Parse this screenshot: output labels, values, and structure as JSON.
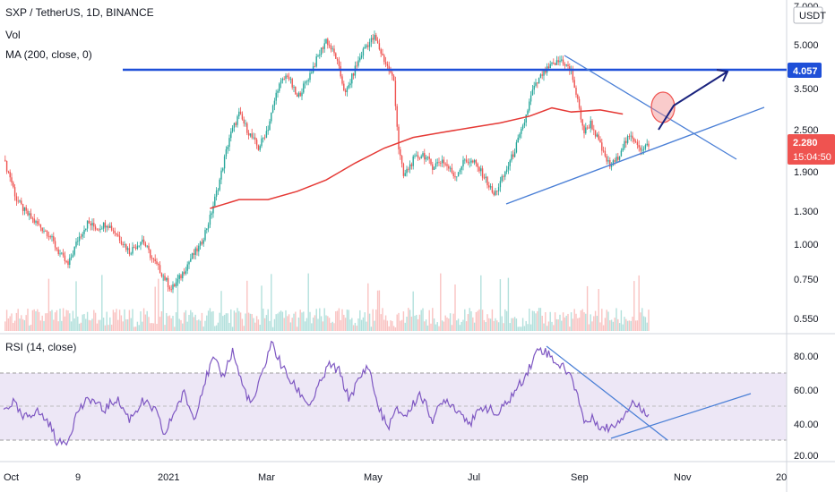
{
  "legend": {
    "symbol": "SXP / TetherUS, 1D, BINANCE",
    "volume": "Vol",
    "ma": "MA (200, close, 0)",
    "rsi": "RSI (14, close)"
  },
  "price_axis": {
    "currency": "USDT",
    "ticks": [
      "5.000",
      "3.500",
      "2.500",
      "1.900",
      "1.300",
      "1.000",
      "0.750",
      "0.550"
    ],
    "top_tick_partial": "7.000"
  },
  "rsi_axis": {
    "ticks": [
      "80.00",
      "60.00",
      "40.00",
      "20.00"
    ]
  },
  "time_axis": {
    "ticks": [
      "Oct",
      "9",
      "2021",
      "Mar",
      "May",
      "Jul",
      "Sep",
      "Nov",
      "20"
    ]
  },
  "price_labels": {
    "resistance": "4.057",
    "last_price": "2.280",
    "countdown": "15:04:50"
  },
  "colors": {
    "up": "#26a69a",
    "down": "#ef5350",
    "ma": "#e53935",
    "resistance_line": "#1e4fd8",
    "trendline": "#4a7fd6",
    "rsi_line": "#7e57c2",
    "rsi_band": "#ede7f6",
    "arrow": "#1a237e",
    "circle": "#f28b8b"
  },
  "chart_data": {
    "type": "candlestick",
    "symbol": "SXP / TetherUS",
    "timeframe": "1D",
    "exchange": "BINANCE",
    "y_scale": "log",
    "price_range": [
      0.5,
      7.0
    ],
    "close_series": [
      [
        0,
        2.0
      ],
      [
        4,
        1.75
      ],
      [
        8,
        1.45
      ],
      [
        14,
        1.3
      ],
      [
        20,
        1.2
      ],
      [
        28,
        1.1
      ],
      [
        34,
        0.95
      ],
      [
        40,
        0.85
      ],
      [
        46,
        1.05
      ],
      [
        52,
        1.2
      ],
      [
        58,
        1.15
      ],
      [
        64,
        1.2
      ],
      [
        70,
        1.1
      ],
      [
        78,
        0.95
      ],
      [
        86,
        1.05
      ],
      [
        92,
        0.9
      ],
      [
        98,
        0.8
      ],
      [
        104,
        0.7
      ],
      [
        110,
        0.78
      ],
      [
        116,
        0.9
      ],
      [
        122,
        1.0
      ],
      [
        128,
        1.25
      ],
      [
        134,
        1.7
      ],
      [
        140,
        2.4
      ],
      [
        146,
        2.9
      ],
      [
        152,
        2.5
      ],
      [
        158,
        2.2
      ],
      [
        164,
        2.6
      ],
      [
        170,
        3.6
      ],
      [
        176,
        4.0
      ],
      [
        182,
        3.3
      ],
      [
        188,
        3.8
      ],
      [
        194,
        4.5
      ],
      [
        200,
        5.3
      ],
      [
        206,
        4.6
      ],
      [
        212,
        3.4
      ],
      [
        218,
        4.2
      ],
      [
        224,
        5.0
      ],
      [
        230,
        5.4
      ],
      [
        236,
        4.5
      ],
      [
        242,
        3.8
      ],
      [
        245,
        2.2
      ],
      [
        248,
        1.75
      ],
      [
        254,
        2.0
      ],
      [
        260,
        2.1
      ],
      [
        266,
        1.9
      ],
      [
        272,
        2.0
      ],
      [
        280,
        1.75
      ],
      [
        286,
        2.0
      ],
      [
        292,
        1.95
      ],
      [
        298,
        1.75
      ],
      [
        304,
        1.5
      ],
      [
        310,
        1.75
      ],
      [
        316,
        2.1
      ],
      [
        322,
        2.6
      ],
      [
        328,
        3.5
      ],
      [
        334,
        4.0
      ],
      [
        340,
        4.3
      ],
      [
        346,
        4.5
      ],
      [
        352,
        4.1
      ],
      [
        356,
        3.2
      ],
      [
        360,
        2.5
      ],
      [
        364,
        2.7
      ],
      [
        368,
        2.4
      ],
      [
        372,
        2.1
      ],
      [
        376,
        1.9
      ],
      [
        380,
        2.0
      ],
      [
        384,
        2.25
      ],
      [
        388,
        2.4
      ],
      [
        392,
        2.35
      ],
      [
        396,
        2.15
      ],
      [
        400,
        2.28
      ]
    ],
    "ma200_series": [
      [
        128,
        1.35
      ],
      [
        146,
        1.45
      ],
      [
        164,
        1.45
      ],
      [
        182,
        1.55
      ],
      [
        200,
        1.7
      ],
      [
        218,
        1.95
      ],
      [
        236,
        2.2
      ],
      [
        254,
        2.4
      ],
      [
        272,
        2.5
      ],
      [
        290,
        2.6
      ],
      [
        308,
        2.7
      ],
      [
        326,
        2.85
      ],
      [
        340,
        3.05
      ],
      [
        352,
        2.95
      ],
      [
        370,
        3.0
      ],
      [
        384,
        2.9
      ]
    ],
    "resistance_level": 4.057,
    "last_price": 2.28,
    "rsi_series": [
      [
        0,
        45
      ],
      [
        6,
        50
      ],
      [
        12,
        40
      ],
      [
        20,
        45
      ],
      [
        28,
        38
      ],
      [
        34,
        25
      ],
      [
        40,
        28
      ],
      [
        46,
        45
      ],
      [
        54,
        52
      ],
      [
        62,
        45
      ],
      [
        70,
        52
      ],
      [
        78,
        40
      ],
      [
        86,
        50
      ],
      [
        94,
        45
      ],
      [
        100,
        30
      ],
      [
        106,
        45
      ],
      [
        112,
        55
      ],
      [
        118,
        40
      ],
      [
        124,
        60
      ],
      [
        130,
        75
      ],
      [
        136,
        65
      ],
      [
        142,
        80
      ],
      [
        148,
        60
      ],
      [
        154,
        48
      ],
      [
        160,
        65
      ],
      [
        166,
        85
      ],
      [
        172,
        72
      ],
      [
        178,
        62
      ],
      [
        184,
        55
      ],
      [
        190,
        48
      ],
      [
        196,
        60
      ],
      [
        202,
        72
      ],
      [
        208,
        68
      ],
      [
        214,
        52
      ],
      [
        220,
        62
      ],
      [
        226,
        72
      ],
      [
        232,
        48
      ],
      [
        238,
        35
      ],
      [
        244,
        45
      ],
      [
        250,
        42
      ],
      [
        258,
        55
      ],
      [
        266,
        40
      ],
      [
        274,
        52
      ],
      [
        282,
        45
      ],
      [
        290,
        38
      ],
      [
        298,
        48
      ],
      [
        306,
        42
      ],
      [
        314,
        52
      ],
      [
        320,
        60
      ],
      [
        326,
        70
      ],
      [
        332,
        82
      ],
      [
        338,
        78
      ],
      [
        344,
        72
      ],
      [
        350,
        68
      ],
      [
        356,
        55
      ],
      [
        360,
        38
      ],
      [
        366,
        40
      ],
      [
        372,
        34
      ],
      [
        378,
        36
      ],
      [
        384,
        42
      ],
      [
        390,
        50
      ],
      [
        396,
        45
      ],
      [
        400,
        44
      ]
    ],
    "rsi_levels": [
      70,
      30
    ],
    "rsi_range": [
      15,
      90
    ]
  }
}
